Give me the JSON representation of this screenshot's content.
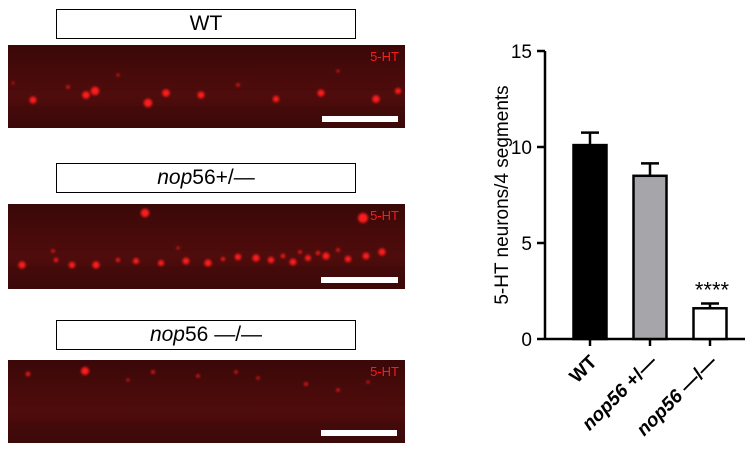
{
  "panels": [
    {
      "label_italic": "",
      "label_plain": "WT",
      "marker": "5-HT",
      "cells": [
        [
          25,
          55,
          3.5
        ],
        [
          78,
          50,
          3.8
        ],
        [
          87,
          46,
          4.2
        ],
        [
          140,
          58,
          4.2
        ],
        [
          158,
          48,
          3.8
        ],
        [
          193,
          50,
          3.5
        ],
        [
          268,
          54,
          3.2
        ],
        [
          313,
          48,
          3.5
        ],
        [
          368,
          54,
          3.8
        ],
        [
          390,
          46,
          3.0
        ],
        [
          60,
          42,
          1.6
        ],
        [
          230,
          40,
          1.6
        ],
        [
          110,
          30,
          1.4
        ],
        [
          330,
          26,
          1.4
        ],
        [
          5,
          38,
          1.2
        ]
      ]
    },
    {
      "label_italic": "nop",
      "label_plain": "56+/—",
      "marker": "5-HT",
      "cells": [
        [
          137,
          9,
          4.2
        ],
        [
          355,
          14,
          5
        ],
        [
          14,
          61,
          3.6
        ],
        [
          64,
          61,
          3.2
        ],
        [
          88,
          61,
          3.6
        ],
        [
          128,
          57,
          3.0
        ],
        [
          153,
          59,
          3.0
        ],
        [
          178,
          57,
          3.4
        ],
        [
          200,
          59,
          3.6
        ],
        [
          230,
          53,
          3.2
        ],
        [
          248,
          54,
          3.6
        ],
        [
          263,
          56,
          3.2
        ],
        [
          285,
          58,
          3.4
        ],
        [
          300,
          54,
          3.0
        ],
        [
          318,
          52,
          3.6
        ],
        [
          340,
          55,
          3.2
        ],
        [
          358,
          52,
          3.4
        ],
        [
          374,
          48,
          3.6
        ],
        [
          48,
          56,
          2.2
        ],
        [
          110,
          56,
          2.0
        ],
        [
          215,
          55,
          2.0
        ],
        [
          275,
          52,
          2.2
        ],
        [
          310,
          49,
          2.0
        ],
        [
          330,
          46,
          1.8
        ],
        [
          292,
          48,
          1.8
        ],
        [
          45,
          47,
          1.6
        ],
        [
          170,
          44,
          1.4
        ]
      ]
    },
    {
      "label_italic": "nop",
      "label_plain": "56 —/—",
      "marker": "5-HT",
      "cells": [
        [
          77,
          11,
          4
        ],
        [
          20,
          14,
          2.2
        ],
        [
          145,
          12,
          1.8
        ],
        [
          190,
          16,
          1.6
        ],
        [
          228,
          12,
          1.6
        ],
        [
          250,
          18,
          1.5
        ],
        [
          298,
          24,
          1.8
        ],
        [
          330,
          30,
          1.6
        ],
        [
          120,
          20,
          1.4
        ],
        [
          360,
          22,
          1.4
        ]
      ]
    }
  ],
  "chart_data": {
    "type": "bar",
    "categories": [
      "WT",
      "nop56 +/—",
      "nop56 —/—"
    ],
    "category_parts": [
      {
        "italic": "",
        "plain": "WT"
      },
      {
        "italic": "nop56",
        "plain": " +/—"
      },
      {
        "italic": "nop56",
        "plain": " —/—"
      }
    ],
    "values": [
      10.1,
      8.5,
      1.6
    ],
    "errors": [
      0.65,
      0.65,
      0.25
    ],
    "colors": [
      "#000000",
      "#a6a6aa",
      "#ffffff"
    ],
    "annotations": [
      "",
      "",
      "****"
    ],
    "ylabel": "5-HT neurons/4 segments",
    "xlabel": "",
    "title": "",
    "ylim": [
      0,
      15
    ],
    "yticks": [
      0,
      5,
      10,
      15
    ],
    "grid": false
  }
}
